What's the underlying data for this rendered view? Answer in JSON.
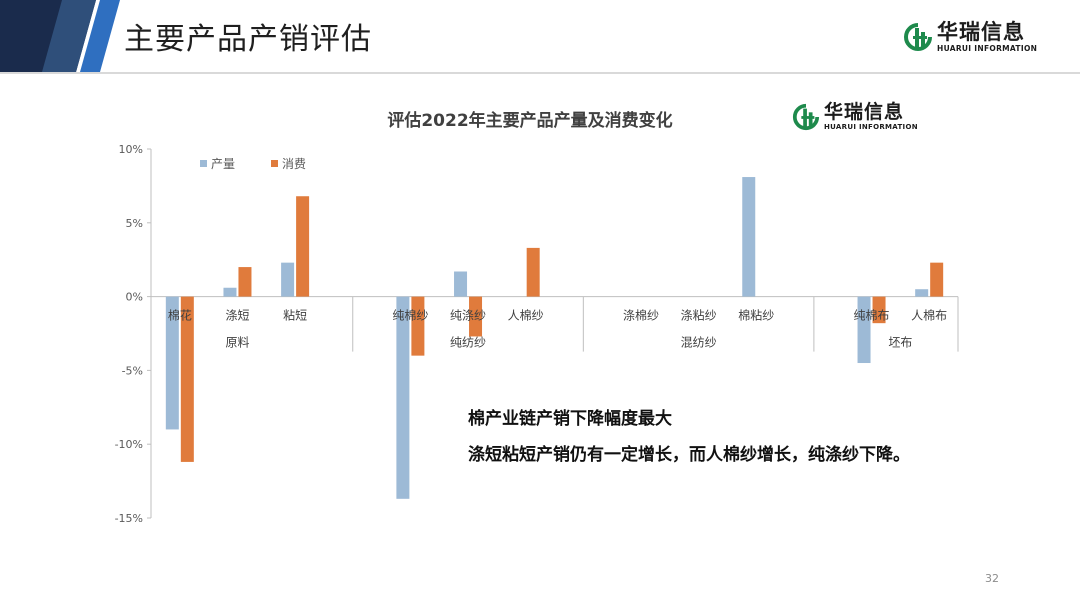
{
  "header": {
    "title": "主要产品产销评估",
    "colors": {
      "navy": "#1a2b4c",
      "blue": "#2f6fc0",
      "gray": "#d9d9d9"
    }
  },
  "logo": {
    "cn": "华瑞信息",
    "en": "HUARUI INFORMATION",
    "icon": "huarui-logo-icon",
    "color": "#1e8a4c"
  },
  "chart_data": {
    "type": "bar",
    "title": "评估2022年主要产品产量及消费变化",
    "categories": [
      "棉花",
      "涤短",
      "粘短",
      "纯棉纱",
      "纯涤纱",
      "人棉纱",
      "涤棉纱",
      "涤粘纱",
      "棉粘纱",
      "纯棉布",
      "人棉布"
    ],
    "groups": [
      {
        "label": "原料",
        "count": 3
      },
      {
        "label": "纯纺纱",
        "count": 3
      },
      {
        "label": "混纺纱",
        "count": 3
      },
      {
        "label": "坯布",
        "count": 2
      }
    ],
    "series": [
      {
        "name": "产量",
        "color": "#9dbad6",
        "values": [
          -9.0,
          0.6,
          2.3,
          -13.7,
          1.7,
          null,
          null,
          null,
          8.1,
          -4.5,
          0.5
        ]
      },
      {
        "name": "消费",
        "color": "#e07b3c",
        "values": [
          -11.2,
          2.0,
          6.8,
          -4.0,
          -2.7,
          3.3,
          null,
          null,
          null,
          -1.8,
          2.3
        ]
      }
    ],
    "ylim": [
      -15,
      10
    ],
    "yticks": [
      "10%",
      "5%",
      "0%",
      "-5%",
      "-10%",
      "-15%"
    ],
    "ytick_values": [
      10,
      5,
      0,
      -5,
      -10,
      -15
    ],
    "legend": "top-left",
    "grid": false
  },
  "notes": [
    "棉产业链产销下降幅度最大",
    "涤短粘短产销仍有一定增长，而人棉纱增长，纯涤纱下降。"
  ],
  "page_number": "32"
}
